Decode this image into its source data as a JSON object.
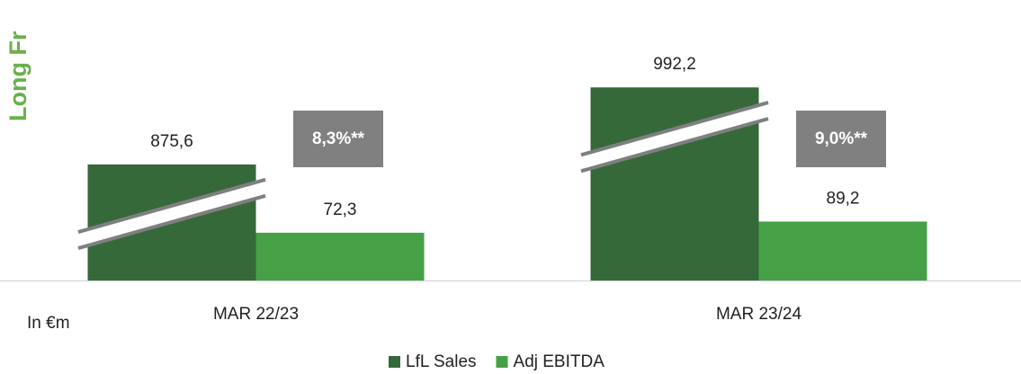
{
  "chart_data": {
    "type": "bar",
    "side_title": "Long Fr",
    "unit_note": "In €m",
    "categories": [
      "MAR 22/23",
      "MAR 23/24"
    ],
    "series": [
      {
        "name": "LfL Sales",
        "color": "#35693a",
        "values": [
          875.6,
          992.2
        ],
        "value_labels": [
          "875,6",
          "992,2"
        ]
      },
      {
        "name": "Adj EBITDA",
        "color": "#46a046",
        "values": [
          72.3,
          89.2
        ],
        "value_labels": [
          "72,3",
          "89,2"
        ]
      }
    ],
    "annotations": [
      "8,3%**",
      "9,0%**"
    ],
    "ylim": [
      0,
      1100
    ],
    "ybreak": [
      100,
      800
    ],
    "legend": "bottom"
  }
}
